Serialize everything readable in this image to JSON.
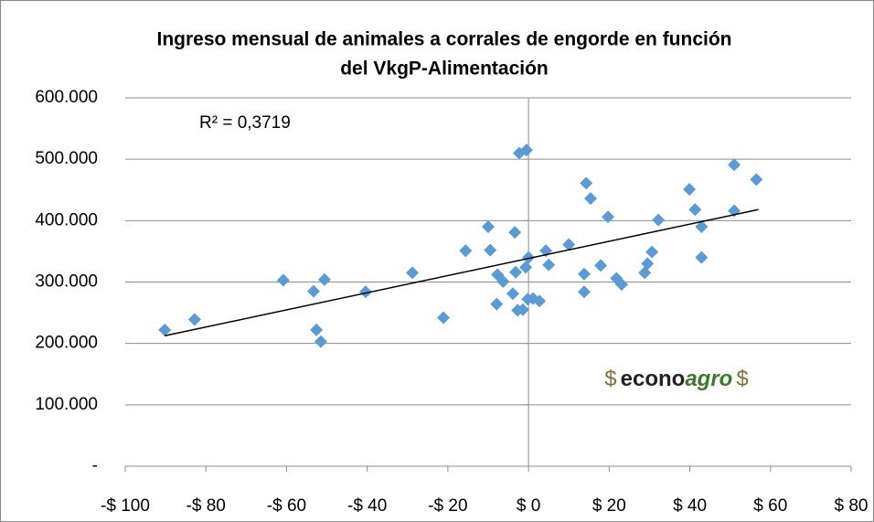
{
  "chart_data": {
    "type": "scatter",
    "title": [
      "Ingreso mensual de animales a corrales de engorde en función",
      "del VkgP-Alimentación"
    ],
    "xlim": [
      -100,
      80
    ],
    "xticks": [
      {
        "value": -100,
        "label": "-$ 100"
      },
      {
        "value": -80,
        "label": "-$ 80"
      },
      {
        "value": -60,
        "label": "-$ 60"
      },
      {
        "value": -40,
        "label": "-$ 40"
      },
      {
        "value": -20,
        "label": "-$ 20"
      },
      {
        "value": 0,
        "label": "$ 0"
      },
      {
        "value": 20,
        "label": "$ 20"
      },
      {
        "value": 40,
        "label": "$ 40"
      },
      {
        "value": 60,
        "label": "$ 60"
      },
      {
        "value": 80,
        "label": "$ 80"
      }
    ],
    "ylim": [
      0,
      600000
    ],
    "yticks": [
      {
        "value": 0,
        "label": "-"
      },
      {
        "value": 100000,
        "label": "100.000"
      },
      {
        "value": 200000,
        "label": "200.000"
      },
      {
        "value": 300000,
        "label": "300.000"
      },
      {
        "value": 400000,
        "label": "400.000"
      },
      {
        "value": 500000,
        "label": "500.000"
      },
      {
        "value": 600000,
        "label": "600.000"
      }
    ],
    "grid": true,
    "color": "#5b9bd5",
    "x": [
      -90.2,
      -82.8,
      -60.8,
      -53.3,
      -52.6,
      -51.5,
      -50.6,
      -40.4,
      -28.8,
      -21.1,
      -15.6,
      -10,
      -9.5,
      -7.9,
      -7.7,
      -6.3,
      -3.9,
      -3.4,
      -3.2,
      -2.7,
      -2.3,
      -1.4,
      -0.7,
      -0.5,
      -0.2,
      0,
      1.1,
      2.7,
      4.3,
      5,
      10,
      13.8,
      13.8,
      14.3,
      15.4,
      17.9,
      19.7,
      21.8,
      23.1,
      28.8,
      29.5,
      30.6,
      32.2,
      39.9,
      41.3,
      42.9,
      42.9,
      51,
      51,
      56.5
    ],
    "y": [
      222000,
      239000,
      303000,
      285000,
      222000,
      203000,
      304000,
      284000,
      315000,
      242000,
      351000,
      390000,
      352000,
      264000,
      312000,
      301000,
      281000,
      381000,
      316000,
      254000,
      510000,
      255000,
      324000,
      515000,
      272000,
      340000,
      273000,
      269000,
      351000,
      328000,
      361000,
      284000,
      313000,
      461000,
      436000,
      327000,
      406000,
      306000,
      296000,
      315000,
      330000,
      349000,
      401000,
      451000,
      418000,
      390000,
      340000,
      416000,
      491000,
      467000
    ],
    "trendline": {
      "x": [
        -90.2,
        57
      ],
      "y": [
        212500,
        418000
      ],
      "color": "#000000"
    },
    "annotation": "R² = 0,3719",
    "watermark": [
      "$",
      "econo",
      "agro",
      "$"
    ]
  }
}
